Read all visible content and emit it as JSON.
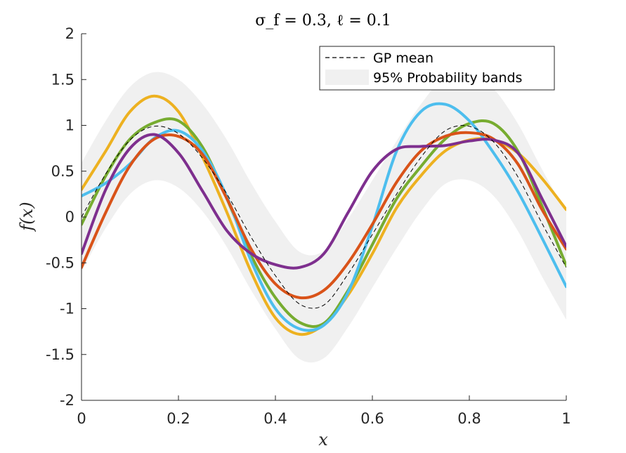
{
  "chart_data": {
    "type": "line",
    "title": "σ_f = 0.3, ℓ = 0.1",
    "xlabel": "x",
    "ylabel": "f(x)",
    "xlim": [
      0,
      1
    ],
    "ylim": [
      -2,
      2
    ],
    "xticks": [
      {
        "value": 0,
        "label": "0"
      },
      {
        "value": 0.2,
        "label": "0.2"
      },
      {
        "value": 0.4,
        "label": "0.4"
      },
      {
        "value": 0.6,
        "label": "0.6"
      },
      {
        "value": 0.8,
        "label": "0.8"
      },
      {
        "value": 1,
        "label": "1"
      }
    ],
    "yticks": [
      {
        "value": 2,
        "label": "2"
      },
      {
        "value": 1.5,
        "label": "1.5"
      },
      {
        "value": 1,
        "label": "1"
      },
      {
        "value": 0.5,
        "label": "0.5"
      },
      {
        "value": 0,
        "label": "0"
      },
      {
        "value": -0.5,
        "label": "-0.5"
      },
      {
        "value": -1,
        "label": "-1"
      },
      {
        "value": -1.5,
        "label": "-1.5"
      },
      {
        "value": -2,
        "label": "-2"
      }
    ],
    "grid": false,
    "legend_position": "top-right",
    "legend": [
      {
        "label": "GP mean",
        "style": "dashed"
      },
      {
        "label": "95% Probability bands",
        "style": "band"
      }
    ],
    "band": {
      "x": [
        0,
        0.05,
        0.1,
        0.15,
        0.2,
        0.25,
        0.3,
        0.35,
        0.4,
        0.45,
        0.5,
        0.55,
        0.6,
        0.65,
        0.7,
        0.75,
        0.8,
        0.85,
        0.9,
        0.95,
        1.0
      ],
      "upper": [
        0.59,
        1.05,
        1.42,
        1.58,
        1.5,
        1.23,
        0.84,
        0.37,
        -0.05,
        -0.38,
        -0.37,
        -0.02,
        0.4,
        0.83,
        1.23,
        1.53,
        1.58,
        1.4,
        1.02,
        0.52,
        0.05
      ],
      "lower": [
        -0.59,
        -0.12,
        0.25,
        0.4,
        0.32,
        0.06,
        -0.33,
        -0.8,
        -1.22,
        -1.55,
        -1.54,
        -1.2,
        -0.77,
        -0.34,
        0.06,
        0.36,
        0.4,
        0.23,
        -0.15,
        -0.65,
        -1.12
      ],
      "color": "#f0f0f0"
    },
    "mean": {
      "name": "GP mean",
      "x": [
        0,
        0.05,
        0.1,
        0.15,
        0.2,
        0.25,
        0.3,
        0.35,
        0.4,
        0.45,
        0.5,
        0.55,
        0.6,
        0.65,
        0.7,
        0.75,
        0.8,
        0.85,
        0.9,
        0.95,
        1.0
      ],
      "y": [
        0.0,
        0.47,
        0.84,
        0.99,
        0.91,
        0.64,
        0.25,
        -0.22,
        -0.64,
        -0.95,
        -0.96,
        -0.62,
        -0.19,
        0.25,
        0.65,
        0.94,
        0.99,
        0.82,
        0.44,
        -0.07,
        -0.55
      ],
      "color": "#000000"
    },
    "series": [
      {
        "color": "#EDB120",
        "x": [
          0,
          0.05,
          0.1,
          0.15,
          0.2,
          0.25,
          0.3,
          0.35,
          0.4,
          0.45,
          0.5,
          0.55,
          0.6,
          0.65,
          0.7,
          0.75,
          0.8,
          0.85,
          0.9,
          0.95,
          1.0
        ],
        "y": [
          0.3,
          0.72,
          1.15,
          1.32,
          1.15,
          0.65,
          0.05,
          -0.6,
          -1.1,
          -1.28,
          -1.17,
          -0.85,
          -0.4,
          0.1,
          0.45,
          0.72,
          0.84,
          0.84,
          0.7,
          0.42,
          0.08
        ]
      },
      {
        "color": "#77AC30",
        "x": [
          0,
          0.05,
          0.1,
          0.15,
          0.2,
          0.25,
          0.3,
          0.35,
          0.4,
          0.45,
          0.5,
          0.55,
          0.6,
          0.65,
          0.7,
          0.75,
          0.8,
          0.85,
          0.9,
          0.95,
          1.0
        ],
        "y": [
          -0.08,
          0.45,
          0.85,
          1.03,
          1.05,
          0.76,
          0.2,
          -0.42,
          -0.88,
          -1.15,
          -1.16,
          -0.8,
          -0.3,
          0.2,
          0.55,
          0.85,
          1.02,
          1.02,
          0.72,
          0.12,
          -0.53
        ]
      },
      {
        "color": "#4DBEEE",
        "x": [
          0,
          0.05,
          0.1,
          0.15,
          0.2,
          0.25,
          0.3,
          0.35,
          0.4,
          0.45,
          0.5,
          0.55,
          0.6,
          0.65,
          0.7,
          0.75,
          0.8,
          0.85,
          0.9,
          0.95,
          1.0
        ],
        "y": [
          0.23,
          0.37,
          0.58,
          0.86,
          0.94,
          0.72,
          0.22,
          -0.48,
          -1.0,
          -1.22,
          -1.18,
          -0.82,
          -0.1,
          0.72,
          1.15,
          1.23,
          1.05,
          0.7,
          0.28,
          -0.23,
          -0.76
        ]
      },
      {
        "color": "#D95319",
        "x": [
          0,
          0.05,
          0.1,
          0.15,
          0.2,
          0.25,
          0.3,
          0.35,
          0.4,
          0.45,
          0.5,
          0.55,
          0.6,
          0.65,
          0.7,
          0.75,
          0.8,
          0.85,
          0.9,
          0.95,
          1.0
        ],
        "y": [
          -0.55,
          0.05,
          0.56,
          0.85,
          0.88,
          0.68,
          0.2,
          -0.35,
          -0.73,
          -0.88,
          -0.8,
          -0.5,
          -0.08,
          0.38,
          0.72,
          0.88,
          0.92,
          0.85,
          0.58,
          0.08,
          -0.35
        ]
      },
      {
        "color": "#7E2F8E",
        "x": [
          0,
          0.05,
          0.1,
          0.15,
          0.2,
          0.25,
          0.3,
          0.35,
          0.4,
          0.45,
          0.5,
          0.55,
          0.6,
          0.65,
          0.7,
          0.75,
          0.8,
          0.85,
          0.9,
          0.95,
          1.0
        ],
        "y": [
          -0.4,
          0.3,
          0.75,
          0.9,
          0.7,
          0.28,
          -0.15,
          -0.4,
          -0.52,
          -0.55,
          -0.4,
          0.05,
          0.5,
          0.74,
          0.77,
          0.78,
          0.83,
          0.84,
          0.7,
          0.2,
          -0.32
        ]
      }
    ]
  }
}
